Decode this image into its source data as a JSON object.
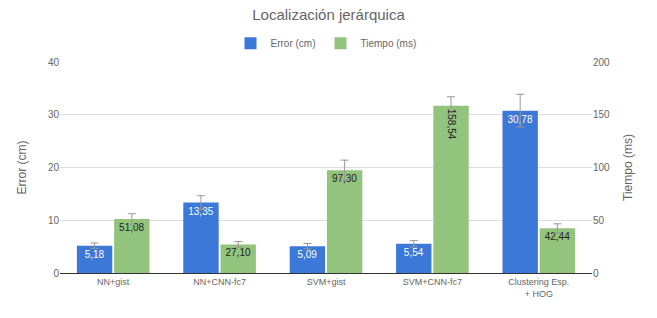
{
  "chart_data": {
    "type": "bar",
    "title": "Localización jerárquica",
    "categories": [
      "NN+gist",
      "NN+CNN-fc7",
      "SVM+gist",
      "SVM+CNN-fc7",
      "Clustering Esp. + HOG"
    ],
    "series": [
      {
        "name": "Error (cm)",
        "color": "#3c78d8",
        "axis": "y",
        "values": [
          5.18,
          13.35,
          5.09,
          5.54,
          30.78
        ],
        "value_labels": [
          "5,18",
          "13,35",
          "5,09",
          "5,54",
          "30,78"
        ],
        "errors": [
          0.5,
          1.3,
          0.5,
          0.6,
          3.1
        ]
      },
      {
        "name": "Tiempo (ms)",
        "color": "#93c47d",
        "axis": "y2",
        "values": [
          51.08,
          27.1,
          97.3,
          158.54,
          42.44
        ],
        "value_labels": [
          "51,08",
          "27,10",
          "97,30",
          "158,54",
          "42,44"
        ],
        "errors": [
          5.1,
          2.7,
          9.7,
          8.5,
          4.2
        ]
      }
    ],
    "y_label": "Error (cm)",
    "y2_label": "Tiempo (ms)",
    "ylim": [
      0,
      40
    ],
    "yticks": [
      0,
      10,
      20,
      30,
      40
    ],
    "y2lim": [
      0,
      200
    ],
    "y2ticks": [
      0,
      50,
      100,
      150,
      200
    ],
    "grid": true,
    "legend": "top",
    "data_labels": true
  }
}
